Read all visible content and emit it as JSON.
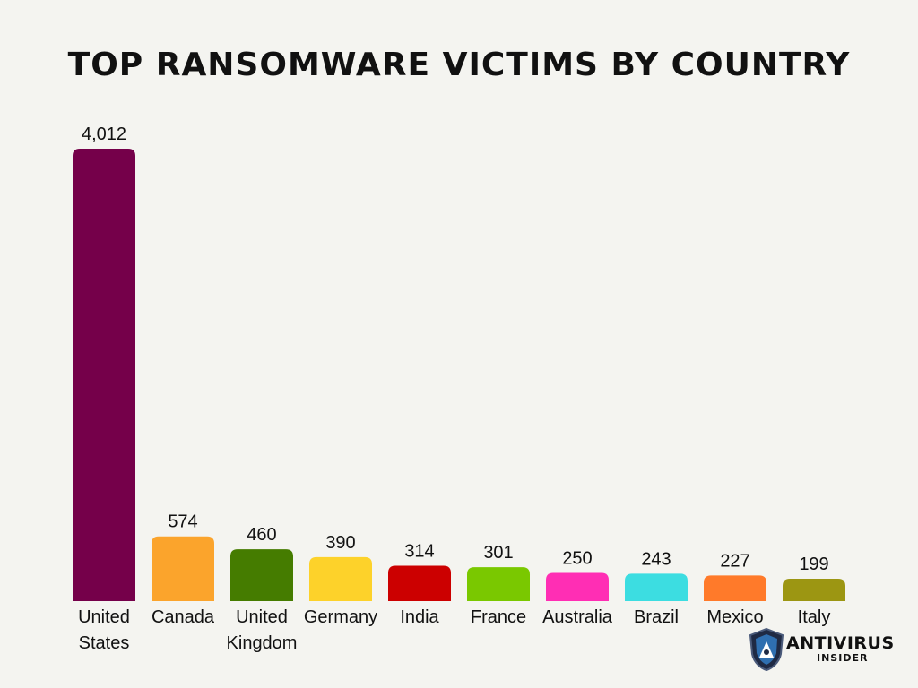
{
  "chart_data": {
    "type": "bar",
    "title": "TOP RANSOMWARE VICTIMS BY COUNTRY",
    "categories": [
      [
        "United",
        "States"
      ],
      [
        "Canada"
      ],
      [
        "United",
        "Kingdom"
      ],
      [
        "Germany"
      ],
      [
        "India"
      ],
      [
        "France"
      ],
      [
        "Australia"
      ],
      [
        "Brazil"
      ],
      [
        "Mexico"
      ],
      [
        "Italy"
      ]
    ],
    "values": [
      4012,
      574,
      460,
      390,
      314,
      301,
      250,
      243,
      227,
      199
    ],
    "value_labels": [
      "4,012",
      "574",
      "460",
      "390",
      "314",
      "301",
      "250",
      "243",
      "227",
      "199"
    ],
    "colors": [
      "#75004a",
      "#fba42c",
      "#457c00",
      "#fdd22a",
      "#cc0000",
      "#7ac800",
      "#ff2eb4",
      "#3cdde1",
      "#ff7a2a",
      "#9c9612"
    ],
    "ylim": [
      0,
      4012
    ],
    "grid": false,
    "legend": "none"
  },
  "logo": {
    "word": "ANTIVIRUS",
    "sub": "INSIDER"
  }
}
